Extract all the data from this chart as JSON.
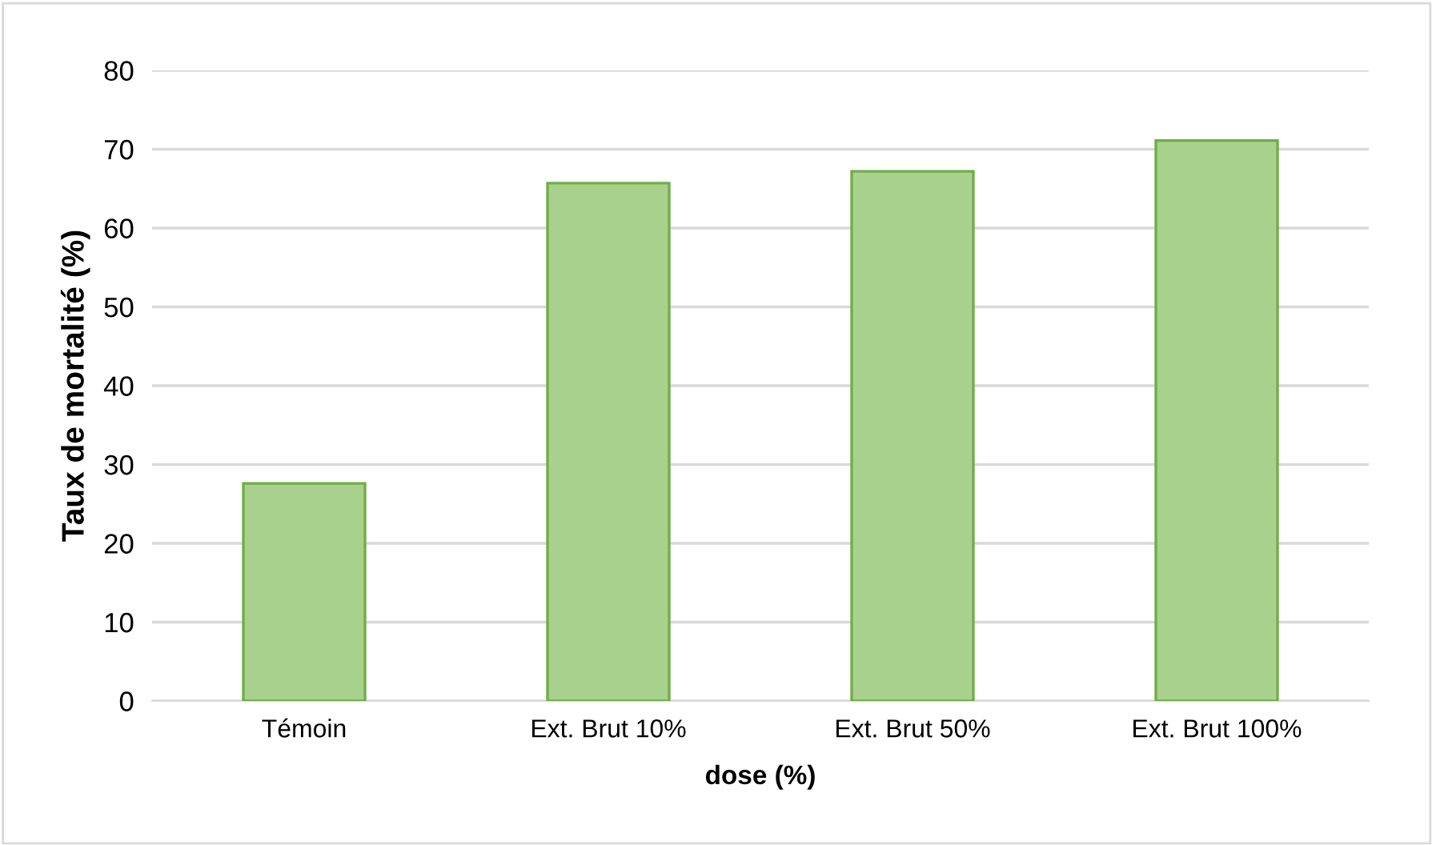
{
  "chart_data": {
    "type": "bar",
    "xlabel": "dose (%)",
    "ylabel": "Taux de mortalité (%)",
    "categories": [
      "Témoin",
      "Ext. Brut 10%",
      "Ext. Brut 50%",
      "Ext. Brut 100%"
    ],
    "values": [
      27.6,
      65.7,
      67.2,
      71.1
    ],
    "color": "#a9d18e",
    "ylim": [
      0,
      80
    ],
    "yticks": [
      0,
      10,
      20,
      30,
      40,
      50,
      60,
      70,
      80
    ],
    "grid": "y",
    "legend": false
  }
}
